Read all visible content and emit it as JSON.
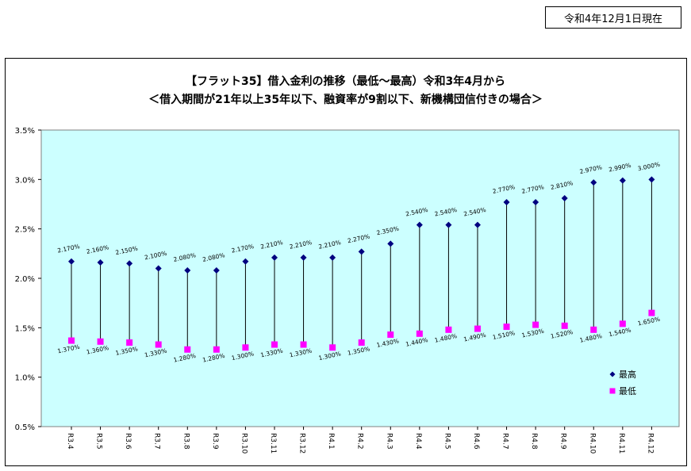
{
  "header": {
    "date_label": "令和4年12月1日現在"
  },
  "chart_data": {
    "type": "line",
    "title": "【フラット35】借入金利の推移（最低～最高）令和3年4月から",
    "subtitle": "＜借入期間が21年以上35年以下、融資率が9割以下、新機構団信付きの場合＞",
    "categories": [
      "R3.4",
      "R3.5",
      "R3.6",
      "R3.7",
      "R3.8",
      "R3.9",
      "R3.10",
      "R3.11",
      "R3.12",
      "R4.1",
      "R4.2",
      "R4.3",
      "R4.4",
      "R4.5",
      "R4.6",
      "R4.7",
      "R4.8",
      "R4.9",
      "R4.10",
      "R4.11",
      "R4.12"
    ],
    "series": [
      {
        "name": "最高",
        "color": "#000080",
        "marker": "diamond",
        "values": [
          2.17,
          2.16,
          2.15,
          2.1,
          2.08,
          2.08,
          2.17,
          2.21,
          2.21,
          2.21,
          2.27,
          2.35,
          2.54,
          2.54,
          2.54,
          2.77,
          2.77,
          2.81,
          2.97,
          2.99,
          3.0
        ],
        "labels": [
          "2.170%",
          "2.160%",
          "2.150%",
          "2.100%",
          "2.080%",
          "2.080%",
          "2.170%",
          "2.210%",
          "2.210%",
          "2.210%",
          "2.270%",
          "2.350%",
          "2.540%",
          "2.540%",
          "2.540%",
          "2.770%",
          "2.770%",
          "2.810%",
          "2.970%",
          "2.990%",
          "3.000%"
        ]
      },
      {
        "name": "最低",
        "color": "#FF00FF",
        "marker": "square",
        "values": [
          1.37,
          1.36,
          1.35,
          1.33,
          1.28,
          1.28,
          1.3,
          1.33,
          1.33,
          1.3,
          1.35,
          1.43,
          1.44,
          1.48,
          1.49,
          1.51,
          1.53,
          1.52,
          1.48,
          1.54,
          1.65
        ],
        "labels": [
          "1.370%",
          "1.360%",
          "1.350%",
          "1.330%",
          "1.280%",
          "1.280%",
          "1.300%",
          "1.330%",
          "1.330%",
          "1.300%",
          "1.350%",
          "1.430%",
          "1.440%",
          "1.480%",
          "1.490%",
          "1.510%",
          "1.530%",
          "1.520%",
          "1.480%",
          "1.540%",
          "1.650%"
        ]
      }
    ],
    "yticks": [
      "0.5%",
      "1.0%",
      "1.5%",
      "2.0%",
      "2.5%",
      "3.0%",
      "3.5%"
    ],
    "ylim": [
      0.5,
      3.5
    ],
    "plot_background": "#CCFFFF",
    "legend_position": "bottom-right",
    "grid": false
  }
}
